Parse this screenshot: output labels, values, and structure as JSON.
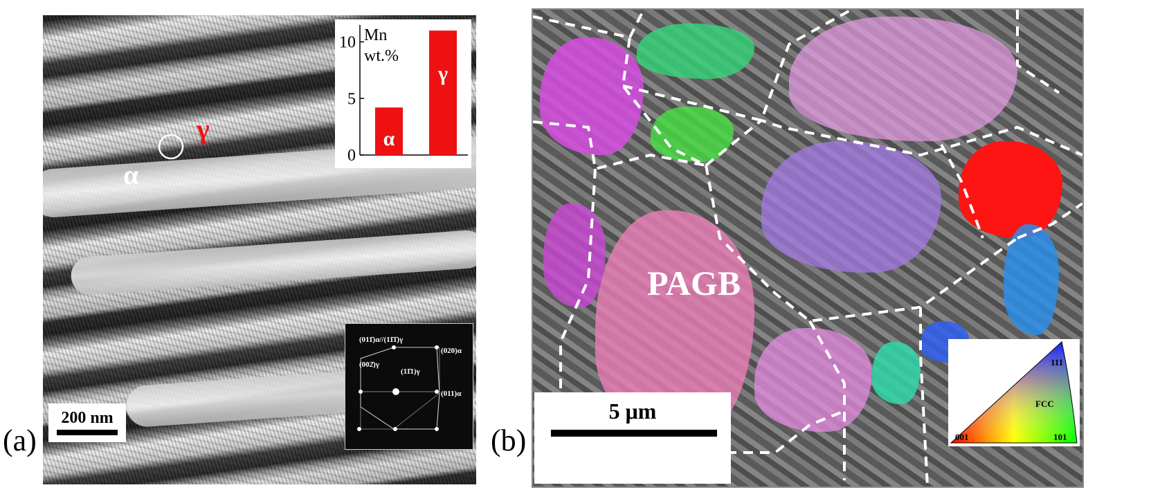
{
  "panel_a": {
    "label": "(a)",
    "phase_alpha": "α",
    "phase_gamma": "γ",
    "scale_bar": "200 nm",
    "mn_chart": {
      "ylabel_line1": "Mn",
      "ylabel_line2": "wt.%",
      "ticks": [
        "0",
        "5",
        "10"
      ]
    },
    "diffraction": {
      "label_top_left": "(011̄)α//(11̄1̄)γ",
      "label_top_right": "(020)α",
      "label_mid_left": "(002̄)γ",
      "label_mid_center": "(11̄1)γ",
      "label_right": "(011)α"
    }
  },
  "panel_b": {
    "label": "(b)",
    "pagb_label": "PAGB",
    "scale_bar": "5 μm",
    "ipf": {
      "corner_001": "001",
      "corner_101": "101",
      "corner_111": "111",
      "center": "FCC"
    }
  },
  "chart_data": {
    "type": "bar",
    "categories": [
      "α",
      "γ"
    ],
    "values": [
      4.2,
      11.0
    ],
    "ylabel": "Mn wt.%",
    "ylim": [
      0,
      11.5
    ],
    "yticks": [
      0,
      5,
      10
    ],
    "bar_color": "#ee1111"
  },
  "colors": {
    "accent_red": "#ee1111",
    "white": "#ffffff",
    "black": "#000000"
  }
}
